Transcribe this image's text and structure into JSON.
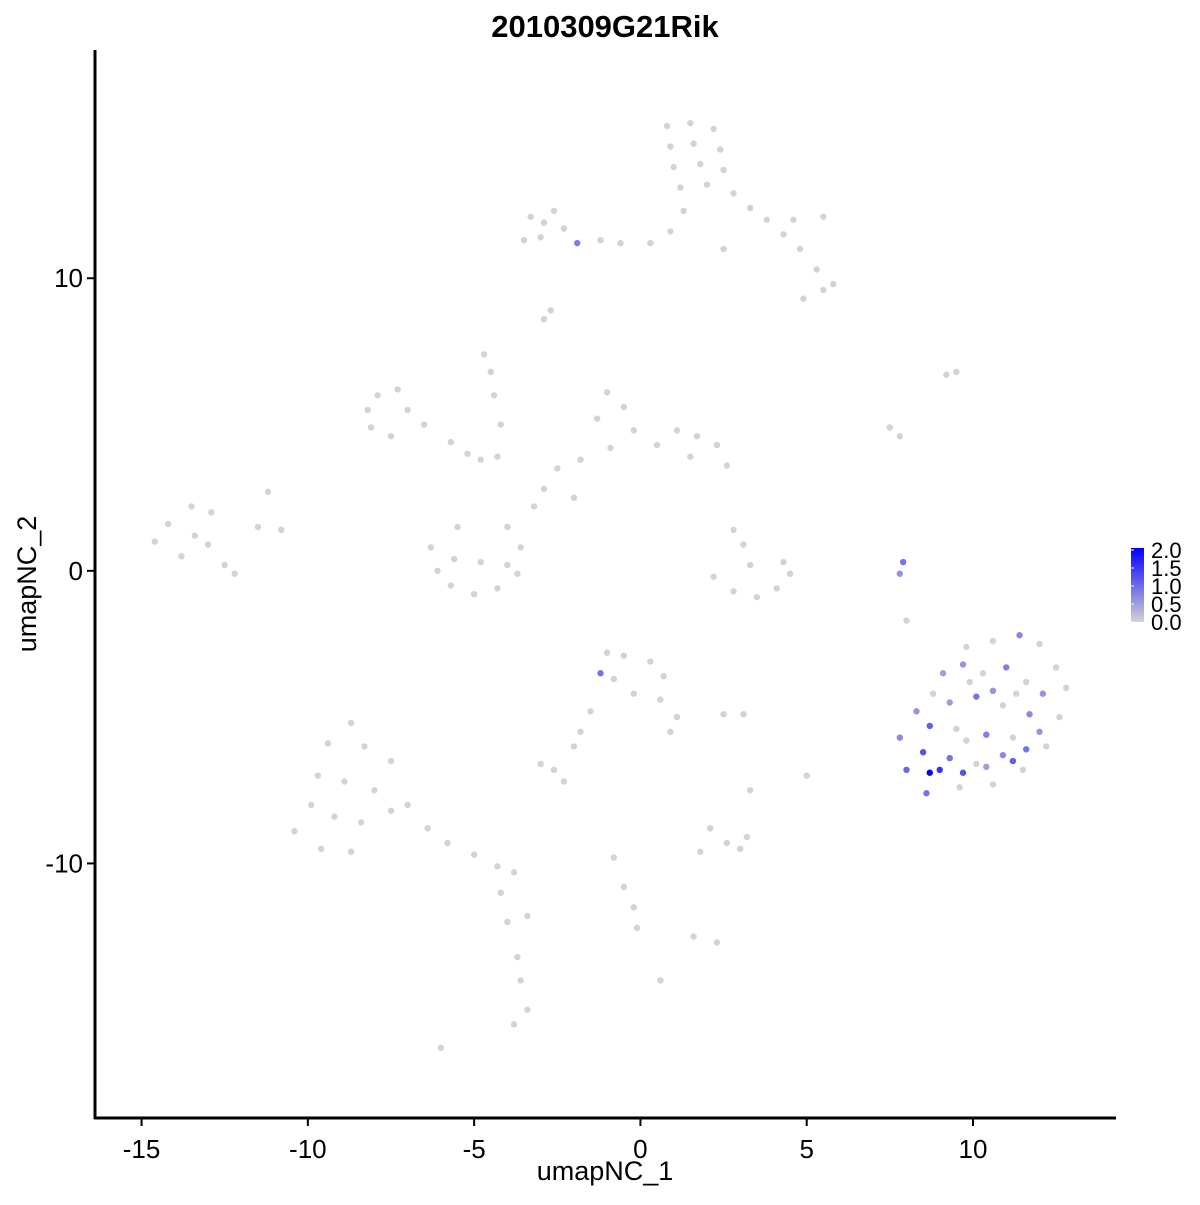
{
  "chart_data": {
    "type": "scatter",
    "title": "2010309G21Rik",
    "x_label": "umapNC_1",
    "y_label": "umapNC_2",
    "xlim": [
      -16.4,
      14.3
    ],
    "ylim": [
      -18.7,
      17.8
    ],
    "xticks": [
      -15,
      -10,
      -5,
      0,
      5,
      10
    ],
    "yticks": [
      -10,
      0,
      10
    ],
    "point_columns": [
      "x",
      "y",
      "expression"
    ],
    "points": [
      [
        0.8,
        15.2,
        0
      ],
      [
        1.5,
        15.3,
        0
      ],
      [
        2.2,
        15.1,
        0
      ],
      [
        0.9,
        14.5,
        0
      ],
      [
        1.6,
        14.6,
        0
      ],
      [
        2.4,
        14.4,
        0
      ],
      [
        1.0,
        13.8,
        0
      ],
      [
        1.8,
        13.9,
        0
      ],
      [
        2.5,
        13.7,
        0
      ],
      [
        1.2,
        13.1,
        0
      ],
      [
        2.0,
        13.2,
        0
      ],
      [
        2.8,
        12.9,
        0
      ],
      [
        3.3,
        12.4,
        0
      ],
      [
        3.8,
        12.0,
        0
      ],
      [
        4.3,
        11.5,
        0
      ],
      [
        4.8,
        11.0,
        0
      ],
      [
        5.3,
        10.3,
        0
      ],
      [
        5.8,
        9.8,
        0
      ],
      [
        5.5,
        9.6,
        0
      ],
      [
        4.9,
        9.3,
        0
      ],
      [
        4.6,
        12.0,
        0
      ],
      [
        5.5,
        12.1,
        0
      ],
      [
        1.3,
        12.3,
        0
      ],
      [
        0.9,
        11.6,
        0
      ],
      [
        0.3,
        11.2,
        0
      ],
      [
        -0.6,
        11.2,
        0
      ],
      [
        -1.2,
        11.3,
        0
      ],
      [
        -2.3,
        11.7,
        0
      ],
      [
        -2.9,
        11.9,
        0
      ],
      [
        -3.0,
        11.4,
        0
      ],
      [
        -3.3,
        12.1,
        0
      ],
      [
        -2.6,
        12.3,
        0
      ],
      [
        -3.5,
        11.3,
        0
      ],
      [
        2.5,
        11.0,
        0
      ],
      [
        -2.7,
        8.9,
        0
      ],
      [
        -2.9,
        8.6,
        0
      ],
      [
        -7.9,
        6.0,
        0
      ],
      [
        -8.2,
        5.5,
        0
      ],
      [
        -8.1,
        4.9,
        0
      ],
      [
        -7.5,
        4.6,
        0
      ],
      [
        -7.0,
        5.5,
        0
      ],
      [
        -7.3,
        6.2,
        0
      ],
      [
        -6.5,
        5.0,
        0
      ],
      [
        -5.7,
        4.4,
        0
      ],
      [
        -5.2,
        4.0,
        0
      ],
      [
        -4.8,
        3.8,
        0
      ],
      [
        -4.3,
        3.9,
        0
      ],
      [
        -4.7,
        7.4,
        0
      ],
      [
        -4.5,
        6.8,
        0
      ],
      [
        -4.4,
        6.0,
        0
      ],
      [
        -4.2,
        5.0,
        0
      ],
      [
        -1.0,
        6.1,
        0
      ],
      [
        -0.5,
        5.6,
        0
      ],
      [
        -1.3,
        5.2,
        0
      ],
      [
        -0.2,
        4.8,
        0
      ],
      [
        0.5,
        4.3,
        0
      ],
      [
        1.1,
        4.8,
        0
      ],
      [
        1.7,
        4.6,
        0
      ],
      [
        2.3,
        4.3,
        0
      ],
      [
        1.5,
        3.9,
        0
      ],
      [
        2.6,
        3.6,
        0
      ],
      [
        -0.9,
        4.2,
        0
      ],
      [
        -1.8,
        3.8,
        0
      ],
      [
        -2.5,
        3.5,
        0
      ],
      [
        -2.9,
        2.8,
        0
      ],
      [
        -3.2,
        2.2,
        0
      ],
      [
        -2.0,
        2.5,
        0
      ],
      [
        -6.3,
        0.8,
        0
      ],
      [
        -6.1,
        0.0,
        0
      ],
      [
        -5.7,
        -0.5,
        0
      ],
      [
        -5.0,
        -0.8,
        0
      ],
      [
        -4.3,
        -0.6,
        0
      ],
      [
        -3.7,
        -0.1,
        0
      ],
      [
        -3.6,
        0.8,
        0
      ],
      [
        -4.0,
        1.5,
        0
      ],
      [
        -5.5,
        1.5,
        0
      ],
      [
        -4.8,
        0.3,
        0
      ],
      [
        -4.0,
        0.2,
        0
      ],
      [
        -5.6,
        0.4,
        0
      ],
      [
        -14.6,
        1.0,
        0
      ],
      [
        -14.2,
        1.6,
        0
      ],
      [
        -13.5,
        2.2,
        0
      ],
      [
        -12.9,
        2.0,
        0
      ],
      [
        -13.8,
        0.5,
        0
      ],
      [
        -13.0,
        0.9,
        0
      ],
      [
        -12.5,
        0.2,
        0
      ],
      [
        -12.2,
        -0.1,
        0
      ],
      [
        -11.5,
        1.5,
        0
      ],
      [
        -11.2,
        2.7,
        0
      ],
      [
        -10.8,
        1.4,
        0
      ],
      [
        -13.4,
        1.2,
        0
      ],
      [
        2.2,
        -0.2,
        0
      ],
      [
        2.8,
        -0.7,
        0
      ],
      [
        3.5,
        -0.9,
        0
      ],
      [
        4.1,
        -0.6,
        0
      ],
      [
        4.5,
        -0.1,
        0
      ],
      [
        3.1,
        0.9,
        0
      ],
      [
        3.3,
        0.2,
        0
      ],
      [
        4.3,
        0.3,
        0
      ],
      [
        2.8,
        1.4,
        0
      ],
      [
        -1.0,
        -2.8,
        0
      ],
      [
        -0.5,
        -2.9,
        0
      ],
      [
        0.3,
        -3.1,
        0
      ],
      [
        0.7,
        -3.6,
        0
      ],
      [
        -0.8,
        -3.7,
        0
      ],
      [
        -0.2,
        -4.2,
        0
      ],
      [
        0.6,
        -4.4,
        0
      ],
      [
        1.1,
        -5.0,
        0
      ],
      [
        0.9,
        -5.5,
        0
      ],
      [
        -1.5,
        -4.8,
        0
      ],
      [
        -1.8,
        -5.5,
        0
      ],
      [
        -2.0,
        -6.0,
        0
      ],
      [
        2.5,
        -4.9,
        0
      ],
      [
        3.1,
        -4.9,
        0
      ],
      [
        -2.6,
        -6.8,
        0
      ],
      [
        -3.0,
        -6.6,
        0
      ],
      [
        -2.3,
        -7.2,
        0
      ],
      [
        2.1,
        -8.8,
        0
      ],
      [
        2.6,
        -9.3,
        0
      ],
      [
        1.8,
        -9.6,
        0
      ],
      [
        3.0,
        -9.5,
        0
      ],
      [
        3.2,
        -9.1,
        0
      ],
      [
        1.6,
        -12.5,
        0
      ],
      [
        2.3,
        -12.7,
        0
      ],
      [
        -0.8,
        -9.8,
        0
      ],
      [
        -0.5,
        -10.8,
        0
      ],
      [
        -0.2,
        -11.5,
        0
      ],
      [
        -0.1,
        -12.2,
        0
      ],
      [
        0.6,
        -14.0,
        0
      ],
      [
        5.0,
        -7.0,
        0
      ],
      [
        3.3,
        -7.5,
        0
      ],
      [
        -8.7,
        -5.2,
        0
      ],
      [
        -9.4,
        -5.9,
        0
      ],
      [
        -8.3,
        -6.0,
        0
      ],
      [
        -7.5,
        -6.5,
        0
      ],
      [
        -9.7,
        -7.0,
        0
      ],
      [
        -8.9,
        -7.2,
        0
      ],
      [
        -8.0,
        -7.5,
        0
      ],
      [
        -9.9,
        -8.0,
        0
      ],
      [
        -9.2,
        -8.4,
        0
      ],
      [
        -8.4,
        -8.6,
        0
      ],
      [
        -7.5,
        -8.2,
        0
      ],
      [
        -10.4,
        -8.9,
        0
      ],
      [
        -9.6,
        -9.5,
        0
      ],
      [
        -8.7,
        -9.6,
        0
      ],
      [
        -7.0,
        -8.0,
        0
      ],
      [
        -6.4,
        -8.8,
        0
      ],
      [
        -5.8,
        -9.3,
        0
      ],
      [
        -5.0,
        -9.7,
        0
      ],
      [
        -4.3,
        -10.1,
        0
      ],
      [
        -3.8,
        -10.3,
        0
      ],
      [
        -4.2,
        -11.0,
        0
      ],
      [
        -4.0,
        -12.0,
        0
      ],
      [
        -3.7,
        -13.2,
        0
      ],
      [
        -3.6,
        -14.0,
        0
      ],
      [
        -3.4,
        -15.0,
        0
      ],
      [
        -3.8,
        -15.5,
        0
      ],
      [
        -6.0,
        -16.3,
        0
      ],
      [
        -3.4,
        -11.8,
        0
      ],
      [
        7.5,
        4.9,
        0
      ],
      [
        7.8,
        4.6,
        0
      ],
      [
        9.2,
        6.7,
        0
      ],
      [
        9.5,
        6.8,
        0
      ],
      [
        8.0,
        -1.7,
        0
      ],
      [
        9.8,
        -2.6,
        0
      ],
      [
        10.6,
        -2.4,
        0
      ],
      [
        12.0,
        -2.5,
        0
      ],
      [
        12.5,
        -3.3,
        0
      ],
      [
        12.8,
        -4.0,
        0
      ],
      [
        12.6,
        -5.0,
        0
      ],
      [
        12.2,
        -6.0,
        0
      ],
      [
        11.5,
        -6.8,
        0
      ],
      [
        10.6,
        -7.3,
        0
      ],
      [
        9.6,
        -7.4,
        0
      ],
      [
        8.8,
        -4.2,
        0
      ],
      [
        10.3,
        -3.5,
        0
      ],
      [
        11.6,
        -3.8,
        0
      ],
      [
        10.9,
        -4.6,
        0
      ],
      [
        9.5,
        -5.4,
        0
      ],
      [
        11.2,
        -5.7,
        0
      ],
      [
        10.1,
        -6.6,
        0
      ],
      [
        9.8,
        -5.8,
        0
      ],
      [
        11.3,
        -4.2,
        0
      ],
      [
        9.9,
        -3.8,
        0
      ],
      [
        -1.9,
        11.2,
        0.8
      ],
      [
        -1.2,
        -3.5,
        0.9
      ],
      [
        7.9,
        0.3,
        0.9
      ],
      [
        7.8,
        -0.1,
        0.6
      ],
      [
        11.4,
        -2.2,
        0.7
      ],
      [
        8.6,
        -7.6,
        0.9
      ],
      [
        8.0,
        -6.8,
        1.0
      ],
      [
        7.8,
        -5.7,
        0.7
      ],
      [
        8.3,
        -4.8,
        0.6
      ],
      [
        9.1,
        -3.5,
        0.5
      ],
      [
        9.7,
        -3.2,
        0.6
      ],
      [
        11.0,
        -3.3,
        0.8
      ],
      [
        12.1,
        -4.2,
        0.6
      ],
      [
        9.3,
        -4.5,
        0.5
      ],
      [
        10.1,
        -4.3,
        0.9
      ],
      [
        11.7,
        -4.9,
        0.7
      ],
      [
        8.7,
        -5.3,
        1.1
      ],
      [
        10.4,
        -5.6,
        0.8
      ],
      [
        12.0,
        -5.5,
        0.6
      ],
      [
        8.5,
        -6.2,
        1.2
      ],
      [
        9.3,
        -6.4,
        0.9
      ],
      [
        10.9,
        -6.3,
        0.7
      ],
      [
        11.6,
        -6.1,
        0.9
      ],
      [
        10.4,
        -6.7,
        0.5
      ],
      [
        10.6,
        -4.1,
        0.6
      ],
      [
        9.7,
        -6.9,
        1.2
      ],
      [
        11.2,
        -6.5,
        1.1
      ],
      [
        9.0,
        -6.8,
        1.5
      ],
      [
        8.7,
        -6.9,
        2.0
      ]
    ],
    "colorbar": {
      "lim": [
        0,
        2
      ],
      "colors": [
        "#d3d3d3",
        "#0000ff"
      ],
      "ticks": [
        {
          "value": 0,
          "label": "0.0"
        },
        0.5,
        {
          "value": 1,
          "label": "1.0"
        },
        1.5,
        {
          "value": 2,
          "label": "2.0"
        }
      ]
    }
  }
}
